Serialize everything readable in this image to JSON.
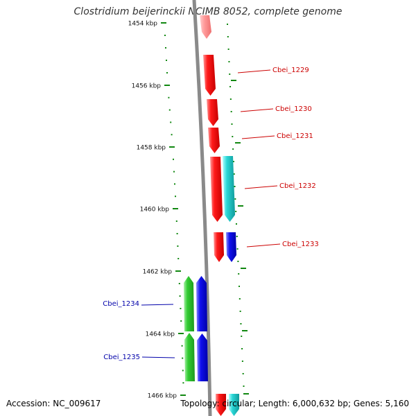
{
  "title": "Clostridium beijerinckii NCIMB 8052, complete genome",
  "ruler": {
    "unit": "kbp",
    "ticks": [
      "1454 kbp",
      "1456 kbp",
      "1458 kbp",
      "1460 kbp",
      "1462 kbp",
      "1464 kbp",
      "1466 kbp"
    ]
  },
  "genes": [
    {
      "label": "Cbei_1229",
      "strand": "forward",
      "label_color": "#cc0000"
    },
    {
      "label": "Cbei_1230",
      "strand": "forward",
      "label_color": "#cc0000"
    },
    {
      "label": "Cbei_1231",
      "strand": "forward",
      "label_color": "#cc0000"
    },
    {
      "label": "Cbei_1232",
      "strand": "forward",
      "label_color": "#cc0000"
    },
    {
      "label": "Cbei_1233",
      "strand": "forward",
      "label_color": "#cc0000"
    },
    {
      "label": "Cbei_1234",
      "strand": "reverse",
      "label_color": "#0000aa"
    },
    {
      "label": "Cbei_1235",
      "strand": "reverse",
      "label_color": "#0000aa"
    }
  ],
  "colors": {
    "forward_gene": "#ee1111",
    "forward_faded": "#f4a0a0",
    "forward_cds": "#22cccc",
    "reverse_gene": "#22bb22",
    "reverse_cds": "#1111dd",
    "backbone": "#888888",
    "tick": "#118811"
  },
  "footer": {
    "accession": "Accession: NC_009617",
    "summary": "Topology: circular; Length: 6,000,632 bp; Genes: 5,160"
  }
}
